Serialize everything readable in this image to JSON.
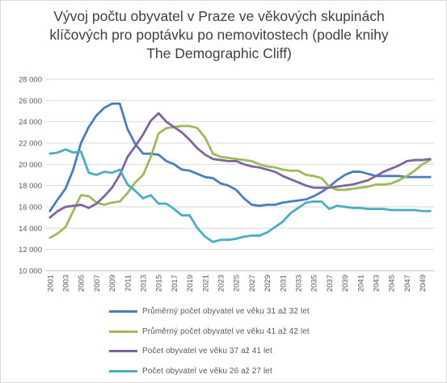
{
  "chart_data": {
    "type": "line",
    "title_lines": [
      "Vývoj počtu obyvatel v Praze ve věkových skupinách",
      "klíčových pro poptávku po nemovitostech (podle knihy",
      "The Demographic Cliff)"
    ],
    "xlabel": "",
    "ylabel": "",
    "ylim": [
      10000,
      28000
    ],
    "yticks": [
      10000,
      12000,
      14000,
      16000,
      18000,
      20000,
      22000,
      24000,
      26000,
      28000
    ],
    "ytick_labels": [
      "10 000",
      "12 000",
      "14 000",
      "16 000",
      "18 000",
      "20 000",
      "22 000",
      "24 000",
      "26 000",
      "28 000"
    ],
    "x": [
      2001,
      2002,
      2003,
      2004,
      2005,
      2006,
      2007,
      2008,
      2009,
      2010,
      2011,
      2012,
      2013,
      2014,
      2015,
      2016,
      2017,
      2018,
      2019,
      2020,
      2021,
      2022,
      2023,
      2024,
      2025,
      2026,
      2027,
      2028,
      2029,
      2030,
      2031,
      2032,
      2033,
      2034,
      2035,
      2036,
      2037,
      2038,
      2039,
      2040,
      2041,
      2042,
      2043,
      2044,
      2045,
      2046,
      2047,
      2048,
      2049,
      2050
    ],
    "xtick_labels": [
      "2001",
      "2003",
      "2005",
      "2007",
      "2009",
      "2011",
      "2013",
      "2015",
      "2017",
      "2019",
      "2021",
      "2023",
      "2025",
      "2027",
      "2029",
      "2031",
      "2033",
      "2035",
      "2037",
      "2039",
      "2041",
      "2043",
      "2045",
      "2047",
      "2049"
    ],
    "grid": true,
    "legend_position": "bottom",
    "series": [
      {
        "name": "Průměrný počet obyvatel ve věku 31  až 32 let",
        "color": "#4a7ebb",
        "values": [
          15600,
          16700,
          17700,
          19500,
          22000,
          23500,
          24600,
          25300,
          25700,
          25700,
          23300,
          21900,
          21000,
          21000,
          20900,
          20300,
          20000,
          19500,
          19400,
          19100,
          18800,
          18700,
          18200,
          18000,
          17600,
          16800,
          16200,
          16100,
          16200,
          16200,
          16400,
          16500,
          16600,
          16700,
          17000,
          17400,
          17900,
          18500,
          19000,
          19300,
          19300,
          19100,
          18900,
          18900,
          18900,
          18900,
          18800,
          18800,
          18800,
          18800
        ]
      },
      {
        "name": "Průměrný počet obyvatel ve věku 41  až 42 let",
        "color": "#9bbb59",
        "values": [
          13100,
          13500,
          14100,
          15600,
          17100,
          17000,
          16400,
          16200,
          16400,
          16500,
          17300,
          18300,
          19000,
          20700,
          22900,
          23400,
          23500,
          23600,
          23600,
          23400,
          22500,
          21000,
          20700,
          20600,
          20500,
          20400,
          20300,
          20000,
          19800,
          19700,
          19500,
          19400,
          19400,
          19000,
          18900,
          18700,
          17900,
          17600,
          17600,
          17700,
          17800,
          17900,
          18100,
          18100,
          18200,
          18500,
          18900,
          19400,
          20000,
          20400
        ]
      },
      {
        "name": "Počet obyvatel ve věku 37 až 41 let",
        "color": "#8064a2",
        "values": [
          15000,
          15600,
          16000,
          16100,
          16200,
          15900,
          16300,
          17000,
          17800,
          19000,
          20700,
          21700,
          22800,
          24100,
          24800,
          24000,
          23500,
          23000,
          22300,
          21500,
          20900,
          20500,
          20400,
          20300,
          20300,
          20000,
          19800,
          19700,
          19500,
          19300,
          18900,
          18600,
          18300,
          18000,
          17800,
          17800,
          17800,
          17900,
          18000,
          18100,
          18300,
          18500,
          18900,
          19300,
          19600,
          19900,
          20300,
          20400,
          20400,
          20500
        ]
      },
      {
        "name": "Počet obyvatel ve věku 26 až 27 let",
        "color": "#4bacc6",
        "values": [
          21000,
          21100,
          21400,
          21100,
          21200,
          19200,
          19000,
          19300,
          19200,
          19500,
          18100,
          17500,
          16800,
          17100,
          16300,
          16300,
          15800,
          15200,
          15200,
          14000,
          13200,
          12700,
          12900,
          12900,
          13000,
          13200,
          13300,
          13300,
          13600,
          14100,
          14600,
          15400,
          15900,
          16400,
          16500,
          16500,
          15800,
          16100,
          16000,
          15900,
          15900,
          15800,
          15800,
          15800,
          15700,
          15700,
          15700,
          15700,
          15600,
          15600
        ]
      }
    ]
  }
}
